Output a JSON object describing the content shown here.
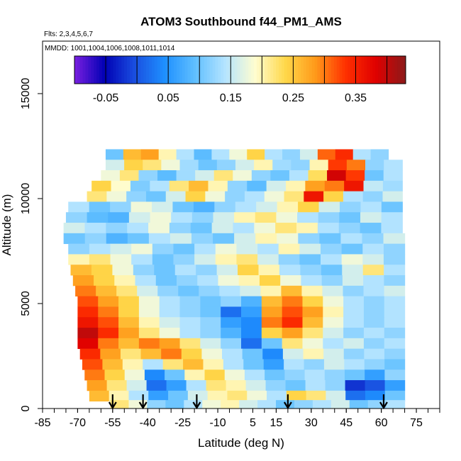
{
  "chart_data": {
    "type": "heatmap",
    "title": "ATOM3 Southbound f44_PM1_AMS",
    "subtitle_flights": "Flts: 2,3,4,5,6,7",
    "subtitle_dates": "MMDD: 1001,1004,1006,1008,1011,1014",
    "xlabel": "Latitude (deg N)",
    "ylabel": "Altitude (m)",
    "xlim": [
      -85,
      85
    ],
    "ylim": [
      0,
      17500
    ],
    "x_ticks": [
      -85,
      -70,
      -55,
      -40,
      -25,
      -10,
      5,
      15,
      30,
      45,
      60,
      75
    ],
    "x_tick_labels": [
      "-85",
      "-70",
      "-55",
      "-40",
      "-25",
      "-10",
      "5",
      "15",
      "30",
      "45",
      "60",
      "75"
    ],
    "y_ticks": [
      0,
      5000,
      10000,
      15000
    ],
    "y_tick_labels": [
      "0",
      "5000",
      "10000",
      "15000"
    ],
    "colorbar": {
      "min": -0.1,
      "max": 0.43,
      "ticks": [
        -0.05,
        0.05,
        0.15,
        0.25,
        0.35
      ],
      "tick_labels": [
        "-0.05",
        "0.05",
        "0.15",
        "0.25",
        "0.35"
      ],
      "colors": [
        "#7a1fe0",
        "#0000b4",
        "#1a4fe0",
        "#1e90ff",
        "#60bfff",
        "#b4e4ff",
        "#fffdd0",
        "#ffd84a",
        "#ff9a1a",
        "#ff3000",
        "#e00000",
        "#8b1a1a"
      ]
    },
    "profile_markers_lat": [
      -55,
      -42,
      -19,
      20,
      61
    ],
    "altitude_bands": [
      {
        "alt": 12100,
        "lat_min": -58,
        "lat_max": 63,
        "values": [
          0.1,
          0.26,
          0.28,
          0.2,
          0.14,
          0.09,
          0.14,
          0.18,
          0.24,
          0.14,
          0.12,
          0.16,
          0.31,
          0.34,
          0.14,
          0.12
        ]
      },
      {
        "alt": 11600,
        "lat_min": -58,
        "lat_max": 69,
        "values": [
          0.16,
          0.24,
          0.22,
          0.18,
          0.13,
          0.1,
          0.12,
          0.16,
          0.2,
          0.13,
          0.12,
          0.2,
          0.33,
          0.3,
          0.12,
          0.14
        ]
      },
      {
        "alt": 11100,
        "lat_min": -60,
        "lat_max": 69,
        "values": [
          0.18,
          0.22,
          0.12,
          0.09,
          0.13,
          0.16,
          0.22,
          0.18,
          0.12,
          0.1,
          0.14,
          0.23,
          0.39,
          0.33,
          0.1,
          0.14
        ]
      },
      {
        "alt": 10600,
        "lat_min": -64,
        "lat_max": 69,
        "values": [
          0.24,
          0.19,
          0.11,
          0.14,
          0.22,
          0.26,
          0.2,
          0.12,
          0.09,
          0.16,
          0.2,
          0.28,
          0.3,
          0.36,
          0.15,
          0.13
        ]
      },
      {
        "alt": 10100,
        "lat_min": -66,
        "lat_max": 69,
        "values": [
          0.22,
          0.18,
          0.12,
          0.1,
          0.16,
          0.24,
          0.18,
          0.12,
          0.14,
          0.18,
          0.22,
          0.36,
          0.24,
          0.14,
          0.12,
          0.16
        ]
      },
      {
        "alt": 9600,
        "lat_min": -74,
        "lat_max": 69,
        "values": [
          0.14,
          0.1,
          0.12,
          0.18,
          0.16,
          0.1,
          0.08,
          0.12,
          0.14,
          0.16,
          0.2,
          0.24,
          0.16,
          0.12,
          0.14,
          0.1
        ]
      },
      {
        "alt": 9100,
        "lat_min": -75,
        "lat_max": 69,
        "values": [
          0.12,
          0.09,
          0.08,
          0.16,
          0.18,
          0.14,
          0.12,
          0.16,
          0.2,
          0.22,
          0.18,
          0.14,
          0.12,
          0.1,
          0.16,
          0.14
        ]
      },
      {
        "alt": 8600,
        "lat_min": -76,
        "lat_max": 69,
        "values": [
          0.16,
          0.14,
          0.12,
          0.14,
          0.18,
          0.12,
          0.1,
          0.16,
          0.14,
          0.18,
          0.22,
          0.2,
          0.14,
          0.12,
          0.1,
          0.14
        ]
      },
      {
        "alt": 8100,
        "lat_min": -76,
        "lat_max": 70,
        "values": [
          0.1,
          0.12,
          0.08,
          0.1,
          0.14,
          0.16,
          0.12,
          0.1,
          0.16,
          0.2,
          0.18,
          0.12,
          0.1,
          0.14,
          0.12,
          0.16
        ]
      },
      {
        "alt": 7600,
        "lat_min": -74,
        "lat_max": 70,
        "values": [
          0.12,
          0.14,
          0.16,
          0.18,
          0.12,
          0.1,
          0.14,
          0.18,
          0.16,
          0.14,
          0.2,
          0.16,
          0.12,
          0.1,
          0.14,
          0.12
        ]
      },
      {
        "alt": 7100,
        "lat_min": -74,
        "lat_max": 70,
        "values": [
          0.2,
          0.22,
          0.18,
          0.14,
          0.1,
          0.12,
          0.16,
          0.2,
          0.22,
          0.16,
          0.12,
          0.1,
          0.14,
          0.18,
          0.16,
          0.12
        ]
      },
      {
        "alt": 6600,
        "lat_min": -73,
        "lat_max": 70,
        "values": [
          0.26,
          0.24,
          0.18,
          0.12,
          0.1,
          0.14,
          0.12,
          0.16,
          0.24,
          0.2,
          0.14,
          0.12,
          0.1,
          0.16,
          0.22,
          0.14
        ]
      },
      {
        "alt": 6100,
        "lat_min": -72,
        "lat_max": 70,
        "values": [
          0.28,
          0.24,
          0.2,
          0.14,
          0.1,
          0.12,
          0.14,
          0.18,
          0.2,
          0.24,
          0.18,
          0.14,
          0.12,
          0.16,
          0.14,
          0.12
        ]
      },
      {
        "alt": 5600,
        "lat_min": -71,
        "lat_max": 70,
        "values": [
          0.3,
          0.26,
          0.22,
          0.16,
          0.12,
          0.1,
          0.12,
          0.14,
          0.16,
          0.2,
          0.26,
          0.2,
          0.16,
          0.12,
          0.14,
          0.16
        ]
      },
      {
        "alt": 5100,
        "lat_min": -70,
        "lat_max": 70,
        "values": [
          0.32,
          0.28,
          0.24,
          0.18,
          0.14,
          0.12,
          0.1,
          0.12,
          0.08,
          0.26,
          0.3,
          0.24,
          0.18,
          0.14,
          0.12,
          0.14
        ]
      },
      {
        "alt": 4600,
        "lat_min": -70,
        "lat_max": 70,
        "values": [
          0.34,
          0.3,
          0.24,
          0.18,
          0.14,
          0.12,
          0.1,
          0.02,
          0.06,
          0.28,
          0.32,
          0.28,
          0.2,
          0.14,
          0.12,
          0.14
        ]
      },
      {
        "alt": 4100,
        "lat_min": -70,
        "lat_max": 70,
        "values": [
          0.36,
          0.32,
          0.26,
          0.2,
          0.16,
          0.14,
          0.12,
          0.06,
          0.04,
          0.3,
          0.34,
          0.26,
          0.18,
          0.14,
          0.12,
          0.14
        ]
      },
      {
        "alt": 3600,
        "lat_min": -70,
        "lat_max": 70,
        "values": [
          0.4,
          0.34,
          0.28,
          0.22,
          0.18,
          0.14,
          0.12,
          0.08,
          0.04,
          0.24,
          0.28,
          0.22,
          0.16,
          0.12,
          0.14,
          0.12
        ]
      },
      {
        "alt": 3100,
        "lat_min": -70,
        "lat_max": 70,
        "values": [
          0.38,
          0.3,
          0.26,
          0.3,
          0.28,
          0.22,
          0.16,
          0.12,
          0.02,
          0.1,
          0.22,
          0.18,
          0.14,
          0.16,
          0.12,
          0.14
        ]
      },
      {
        "alt": 2600,
        "lat_min": -69,
        "lat_max": 70,
        "values": [
          0.34,
          0.28,
          0.22,
          0.26,
          0.3,
          0.24,
          0.18,
          0.14,
          0.1,
          0.04,
          0.16,
          0.2,
          0.16,
          0.12,
          0.14,
          0.12
        ]
      },
      {
        "alt": 2100,
        "lat_min": -68,
        "lat_max": 70,
        "values": [
          0.32,
          0.26,
          0.2,
          0.14,
          0.22,
          0.26,
          0.2,
          0.14,
          0.1,
          0.06,
          0.14,
          0.12,
          0.16,
          0.14,
          0.12,
          0.1
        ]
      },
      {
        "alt": 1600,
        "lat_min": -67,
        "lat_max": 70,
        "values": [
          0.3,
          0.24,
          0.18,
          0.04,
          0.1,
          0.2,
          0.24,
          0.18,
          0.14,
          0.1,
          0.12,
          0.14,
          0.12,
          0.1,
          0.06,
          0.12
        ]
      },
      {
        "alt": 1100,
        "lat_min": -66,
        "lat_max": 70,
        "values": [
          0.28,
          0.22,
          0.16,
          0.02,
          0.06,
          0.14,
          0.22,
          0.2,
          0.16,
          0.12,
          0.1,
          0.14,
          0.12,
          -0.02,
          0.0,
          0.06
        ]
      },
      {
        "alt": 600,
        "lat_min": -65,
        "lat_max": 70,
        "values": [
          0.26,
          0.2,
          0.14,
          0.06,
          0.1,
          0.16,
          0.2,
          0.22,
          0.18,
          0.14,
          0.24,
          0.22,
          0.16,
          0.02,
          0.04,
          0.1
        ]
      },
      {
        "alt": 150,
        "lat_min": -56,
        "lat_max": 70,
        "values": [
          0.22,
          0.18,
          0.12,
          0.1,
          0.14,
          0.18,
          0.2,
          0.16,
          0.14,
          0.1,
          0.12,
          0.14,
          0.16,
          0.1,
          0.12,
          0.14
        ]
      }
    ]
  }
}
